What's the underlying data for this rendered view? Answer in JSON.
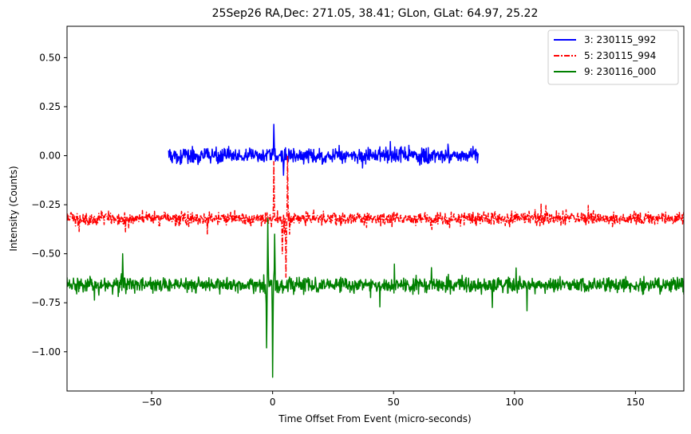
{
  "chart_data": {
    "type": "line",
    "title": "25Sep26 RA,Dec:  271.05,  38.41; GLon, GLat:   64.97,  25.22",
    "xlabel": "Time Offset From Event (micro-seconds)",
    "ylabel": "Intensity (Counts)",
    "xlim": [
      -85,
      170
    ],
    "ylim": [
      -1.2,
      0.66
    ],
    "xticks": [
      -50,
      0,
      50,
      100,
      150
    ],
    "xtick_labels": [
      "−50",
      "0",
      "50",
      "100",
      "150"
    ],
    "yticks": [
      0.5,
      0.25,
      0.0,
      -0.25,
      -0.5,
      -0.75,
      -1.0
    ],
    "ytick_labels": [
      "0.50",
      "0.25",
      "0.00",
      "−0.25",
      "−0.50",
      "−0.75",
      "−1.00"
    ],
    "legend_position": "top-right",
    "series": [
      {
        "name": "3: 230115_992",
        "color": "#0000ff",
        "linestyle": "solid",
        "x_range": [
          -43,
          85
        ],
        "baseline": 0.0,
        "noise_amplitude": 0.05,
        "peak_max": 0.16,
        "peak_min": -0.13,
        "spikes": [
          {
            "x": 0.5,
            "y": 0.16
          },
          {
            "x": 4.5,
            "y": -0.1
          }
        ]
      },
      {
        "name": "5: 230115_994",
        "color": "#ff0000",
        "linestyle": "dashdot",
        "x_range": [
          -85,
          170
        ],
        "baseline": -0.32,
        "noise_amplitude": 0.045,
        "peak_max": 0.0,
        "peak_min": -0.62,
        "spikes": [
          {
            "x": 0.5,
            "y": -0.03
          },
          {
            "x": 5.5,
            "y": -0.62
          },
          {
            "x": 6.2,
            "y": 0.0
          },
          {
            "x": 4.0,
            "y": -0.5
          }
        ]
      },
      {
        "name": "9: 230116_000",
        "color": "#008000",
        "linestyle": "solid",
        "x_range": [
          -85,
          170
        ],
        "baseline": -0.66,
        "noise_amplitude": 0.05,
        "peak_max": -0.32,
        "peak_min": -1.13,
        "spikes": [
          {
            "x": -2.5,
            "y": -0.98
          },
          {
            "x": -2.0,
            "y": -0.32
          },
          {
            "x": 0.0,
            "y": -1.13
          },
          {
            "x": 0.8,
            "y": -0.4
          },
          {
            "x": -62,
            "y": -0.5
          }
        ]
      }
    ]
  }
}
